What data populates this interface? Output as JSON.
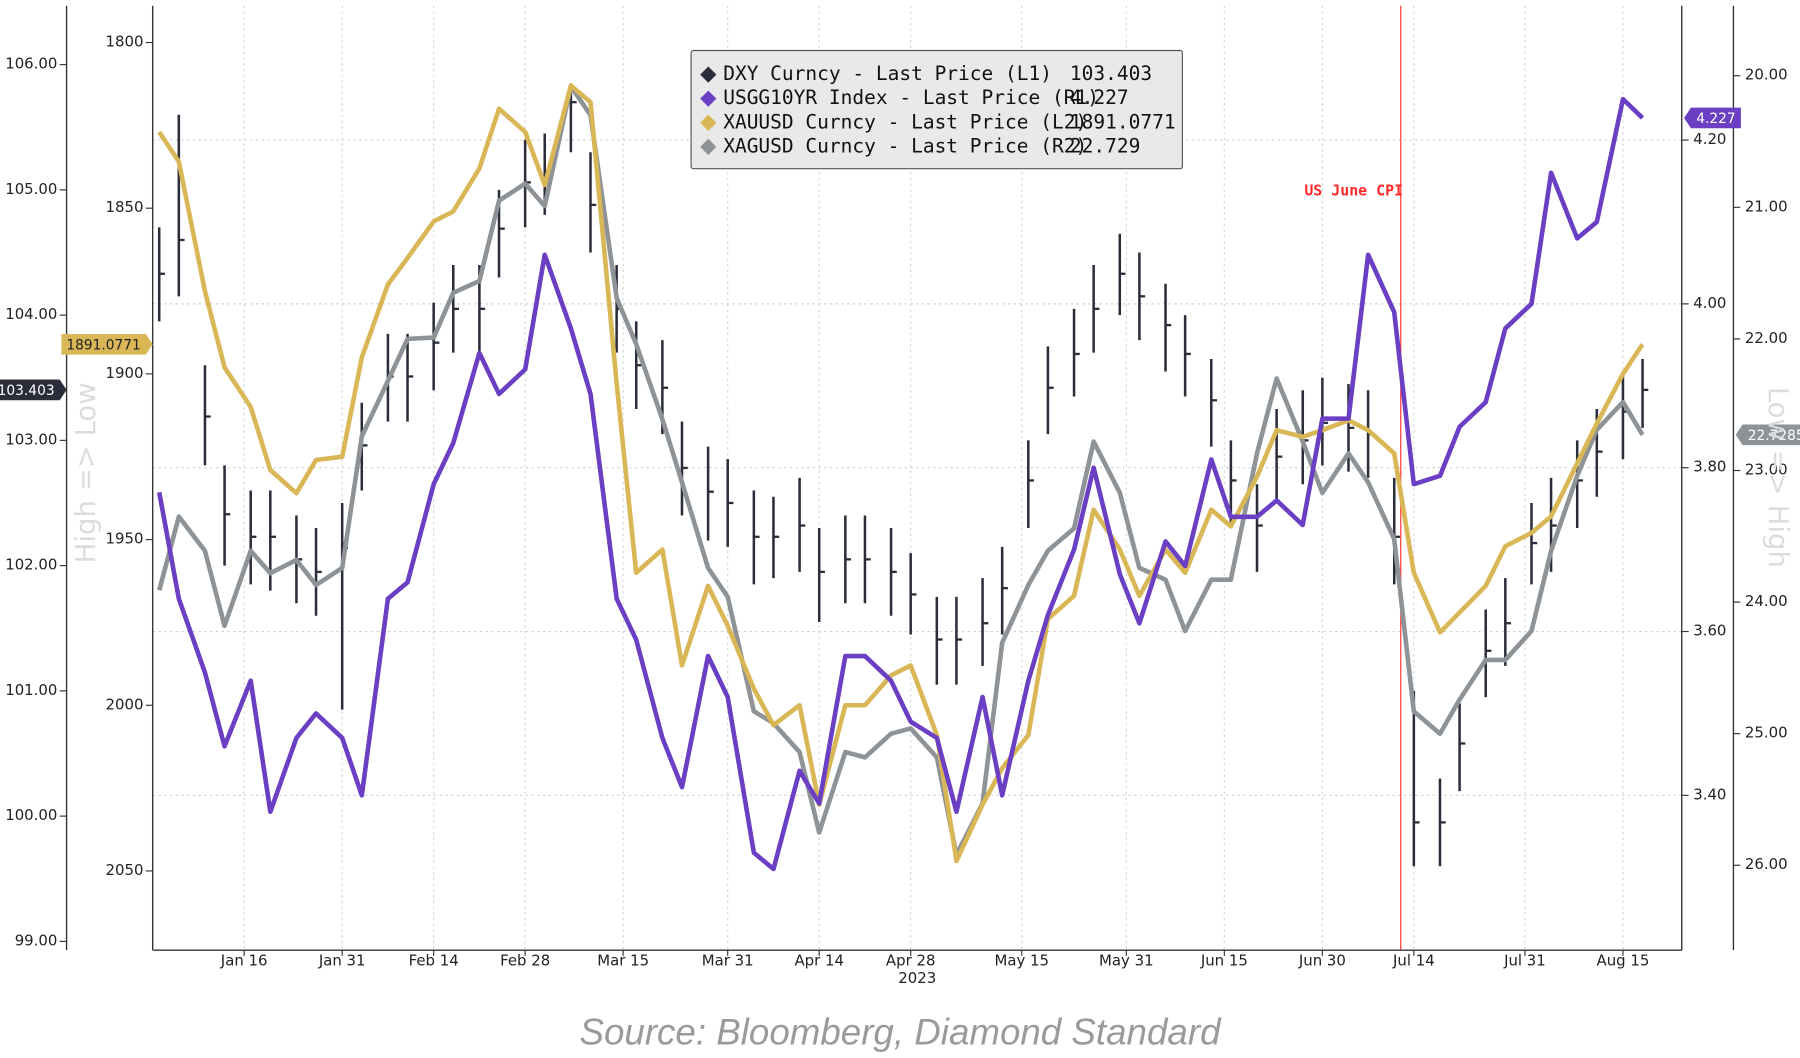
{
  "chart_data": {
    "type": "line",
    "source": "Source: Bloomberg, Diamond Standard",
    "xlabel": "2023",
    "left_label": "High => Low",
    "right_label": "Low => High",
    "grid": true,
    "xlim": [
      "2023-01-02",
      "2023-08-24"
    ],
    "xticks": [
      {
        "value": "2023-01-16",
        "label": "Jan 16"
      },
      {
        "value": "2023-01-31",
        "label": "Jan 31"
      },
      {
        "value": "2023-02-14",
        "label": "Feb 14"
      },
      {
        "value": "2023-02-28",
        "label": "Feb 28"
      },
      {
        "value": "2023-03-15",
        "label": "Mar 15"
      },
      {
        "value": "2023-03-31",
        "label": "Mar 31"
      },
      {
        "value": "2023-04-14",
        "label": "Apr 14"
      },
      {
        "value": "2023-04-28",
        "label": "Apr 28"
      },
      {
        "value": "2023-05-15",
        "label": "May 15"
      },
      {
        "value": "2023-05-31",
        "label": "May 31"
      },
      {
        "value": "2023-06-15",
        "label": "Jun 15"
      },
      {
        "value": "2023-06-30",
        "label": "Jun 30"
      },
      {
        "value": "2023-07-14",
        "label": "Jul 14"
      },
      {
        "value": "2023-07-31",
        "label": "Jul 31"
      },
      {
        "value": "2023-08-15",
        "label": "Aug 15"
      }
    ],
    "ylim": [
      98.93,
      106.47
    ],
    "yticks": [
      {
        "value": 99,
        "label": "99.00"
      },
      {
        "value": 100,
        "label": "100.00"
      },
      {
        "value": 101,
        "label": "101.00"
      },
      {
        "value": 102,
        "label": "102.00"
      },
      {
        "value": 103,
        "label": "103.00"
      },
      {
        "value": 104,
        "label": "104.00"
      },
      {
        "value": 105,
        "label": "105.00"
      },
      {
        "value": 106,
        "label": "106.00"
      }
    ],
    "y3lim": [
      2073.9,
      1788.9
    ],
    "y3ticks": [
      1800,
      1850,
      1900,
      1950,
      2000,
      2050
    ],
    "y2lim": [
      3.211,
      4.364
    ],
    "y2ticks": [
      {
        "value": 3.4,
        "label": "3.40"
      },
      {
        "value": 3.6,
        "label": "3.60"
      },
      {
        "value": 3.8,
        "label": "3.80"
      },
      {
        "value": 4.0,
        "label": "4.00"
      },
      {
        "value": 4.2,
        "label": "4.20"
      }
    ],
    "y4lim": [
      26.645,
      19.468
    ],
    "y4ticks": [
      {
        "value": 20,
        "label": "20.00"
      },
      {
        "value": 21,
        "label": "21.00"
      },
      {
        "value": 22,
        "label": "22.00"
      },
      {
        "value": 23,
        "label": "23.00"
      },
      {
        "value": 24,
        "label": "24.00"
      },
      {
        "value": 25,
        "label": "25.00"
      },
      {
        "value": 26,
        "label": "26.00"
      }
    ],
    "annotations": [
      {
        "text": "US June CPI",
        "x": "2023-07-12",
        "color": "#ff2a2a"
      }
    ],
    "x": [
      "2023-01-03",
      "2023-01-06",
      "2023-01-10",
      "2023-01-13",
      "2023-01-17",
      "2023-01-20",
      "2023-01-24",
      "2023-01-27",
      "2023-01-31",
      "2023-02-03",
      "2023-02-07",
      "2023-02-10",
      "2023-02-14",
      "2023-02-17",
      "2023-02-21",
      "2023-02-24",
      "2023-02-28",
      "2023-03-03",
      "2023-03-07",
      "2023-03-10",
      "2023-03-14",
      "2023-03-17",
      "2023-03-21",
      "2023-03-24",
      "2023-03-28",
      "2023-03-31",
      "2023-04-04",
      "2023-04-07",
      "2023-04-11",
      "2023-04-14",
      "2023-04-18",
      "2023-04-21",
      "2023-04-25",
      "2023-04-28",
      "2023-05-02",
      "2023-05-05",
      "2023-05-09",
      "2023-05-12",
      "2023-05-16",
      "2023-05-19",
      "2023-05-23",
      "2023-05-26",
      "2023-05-30",
      "2023-06-02",
      "2023-06-06",
      "2023-06-09",
      "2023-06-13",
      "2023-06-16",
      "2023-06-20",
      "2023-06-23",
      "2023-06-27",
      "2023-06-30",
      "2023-07-04",
      "2023-07-07",
      "2023-07-11",
      "2023-07-14",
      "2023-07-18",
      "2023-07-21",
      "2023-07-25",
      "2023-07-28",
      "2023-08-01",
      "2023-08-04",
      "2023-08-08",
      "2023-08-11",
      "2023-08-15",
      "2023-08-18"
    ],
    "series": [
      {
        "name": "DXY Curncy - Last Price (L1)",
        "type": "hl_bar",
        "axis": "y",
        "color": "#2b2d3a",
        "values": [
          104.33,
          104.6,
          103.19,
          102.41,
          102.23,
          102.23,
          102.05,
          101.95,
          102.14,
          102.96,
          103.51,
          103.51,
          103.78,
          104.05,
          104.05,
          104.69,
          105.06,
          105.15,
          105.7,
          104.88,
          104.05,
          103.6,
          103.42,
          102.78,
          102.59,
          102.5,
          102.23,
          102.23,
          102.32,
          101.95,
          102.05,
          102.05,
          101.95,
          101.77,
          101.41,
          101.41,
          101.54,
          101.82,
          102.68,
          103.42,
          103.69,
          104.05,
          104.33,
          104.15,
          103.92,
          103.69,
          103.32,
          102.68,
          102.32,
          102.87,
          103.0,
          103.14,
          103.1,
          103.05,
          102.23,
          99.95,
          99.95,
          100.58,
          101.32,
          101.54,
          102.18,
          102.32,
          102.68,
          102.91,
          103.23,
          103.403
        ],
        "high": [
          104.7,
          105.6,
          103.6,
          102.8,
          102.6,
          102.6,
          102.4,
          102.3,
          102.5,
          103.3,
          103.85,
          103.85,
          104.1,
          104.4,
          104.4,
          105.0,
          105.4,
          105.45,
          105.85,
          105.3,
          104.4,
          103.95,
          103.8,
          103.15,
          102.95,
          102.85,
          102.6,
          102.55,
          102.7,
          102.3,
          102.4,
          102.4,
          102.3,
          102.1,
          101.75,
          101.75,
          101.9,
          102.15,
          103.0,
          103.75,
          104.05,
          104.4,
          104.65,
          104.5,
          104.25,
          104.0,
          103.65,
          103.0,
          102.65,
          103.25,
          103.4,
          103.5,
          103.45,
          103.4,
          102.7,
          101.0,
          100.3,
          100.9,
          101.65,
          101.9,
          102.5,
          102.7,
          103.0,
          103.25,
          103.55,
          103.65
        ],
        "low": [
          103.95,
          104.15,
          102.8,
          102.0,
          101.85,
          101.8,
          101.7,
          101.6,
          100.85,
          102.6,
          103.15,
          103.15,
          103.4,
          103.7,
          103.7,
          104.3,
          104.7,
          104.8,
          105.3,
          104.5,
          103.7,
          103.25,
          103.05,
          102.4,
          102.2,
          102.15,
          101.85,
          101.9,
          101.95,
          101.55,
          101.7,
          101.7,
          101.6,
          101.45,
          101.05,
          101.05,
          101.2,
          101.45,
          102.3,
          103.05,
          103.35,
          103.7,
          104.0,
          103.8,
          103.55,
          103.35,
          102.95,
          102.3,
          101.95,
          102.5,
          102.65,
          102.8,
          102.75,
          102.7,
          101.85,
          99.6,
          99.6,
          100.2,
          100.95,
          101.2,
          101.85,
          101.95,
          102.3,
          102.55,
          102.85,
          103.1
        ]
      },
      {
        "name": "USGG10YR Index - Last Price (R1)",
        "type": "line",
        "axis": "y2",
        "color": "#6b3fc4",
        "values": [
          3.77,
          3.64,
          3.55,
          3.46,
          3.54,
          3.38,
          3.47,
          3.5,
          3.47,
          3.4,
          3.64,
          3.66,
          3.78,
          3.83,
          3.94,
          3.89,
          3.92,
          4.06,
          3.97,
          3.89,
          3.64,
          3.59,
          3.47,
          3.41,
          3.57,
          3.52,
          3.33,
          3.31,
          3.43,
          3.39,
          3.57,
          3.57,
          3.54,
          3.49,
          3.47,
          3.38,
          3.52,
          3.4,
          3.54,
          3.62,
          3.7,
          3.8,
          3.67,
          3.61,
          3.71,
          3.68,
          3.81,
          3.74,
          3.74,
          3.76,
          3.73,
          3.86,
          3.86,
          4.06,
          3.99,
          3.78,
          3.79,
          3.85,
          3.88,
          3.97,
          4.0,
          4.16,
          4.08,
          4.1,
          4.25,
          4.227
        ]
      },
      {
        "name": "XAUUSD Curncy - Last Price (L2)",
        "type": "line",
        "axis": "y3",
        "color": "#d9b656",
        "values": [
          1827,
          1836,
          1875,
          1898,
          1910,
          1929,
          1936,
          1926,
          1925,
          1895,
          1873,
          1865,
          1854,
          1851,
          1838,
          1820,
          1827,
          1843,
          1813,
          1818,
          1903,
          1960,
          1953,
          1988,
          1964,
          1976,
          1995,
          2006,
          2000,
          2030,
          2000,
          2000,
          1991,
          1988,
          2009,
          2047,
          2030,
          2019,
          2009,
          1974,
          1967,
          1941,
          1953,
          1967,
          1953,
          1960,
          1941,
          1946,
          1931,
          1917,
          1919,
          1917,
          1914,
          1917,
          1924,
          1960,
          1978,
          1972,
          1964,
          1952,
          1948,
          1943,
          1927,
          1915,
          1900,
          1891.0771
        ]
      },
      {
        "name": "XAGUSD Curncy - Last Price (R2)",
        "type": "line",
        "axis": "y4",
        "color": "#8e9398",
        "legend_label": "22.729",
        "values": [
          23.91,
          23.35,
          23.61,
          24.18,
          23.61,
          23.78,
          23.68,
          23.87,
          23.74,
          22.74,
          22.32,
          22.0,
          21.99,
          21.65,
          21.56,
          20.95,
          20.82,
          20.99,
          20.08,
          20.3,
          21.69,
          22.04,
          22.61,
          23.09,
          23.74,
          23.96,
          24.83,
          24.92,
          25.14,
          25.75,
          25.14,
          25.18,
          25.0,
          24.96,
          25.18,
          25.92,
          25.53,
          24.31,
          23.87,
          23.61,
          23.44,
          22.78,
          23.17,
          23.74,
          23.83,
          24.22,
          23.83,
          23.83,
          22.87,
          22.3,
          22.78,
          23.17,
          22.87,
          23.09,
          23.52,
          24.83,
          25.0,
          24.74,
          24.44,
          24.44,
          24.22,
          23.61,
          23.04,
          22.69,
          22.48,
          22.7285
        ]
      }
    ]
  }
}
